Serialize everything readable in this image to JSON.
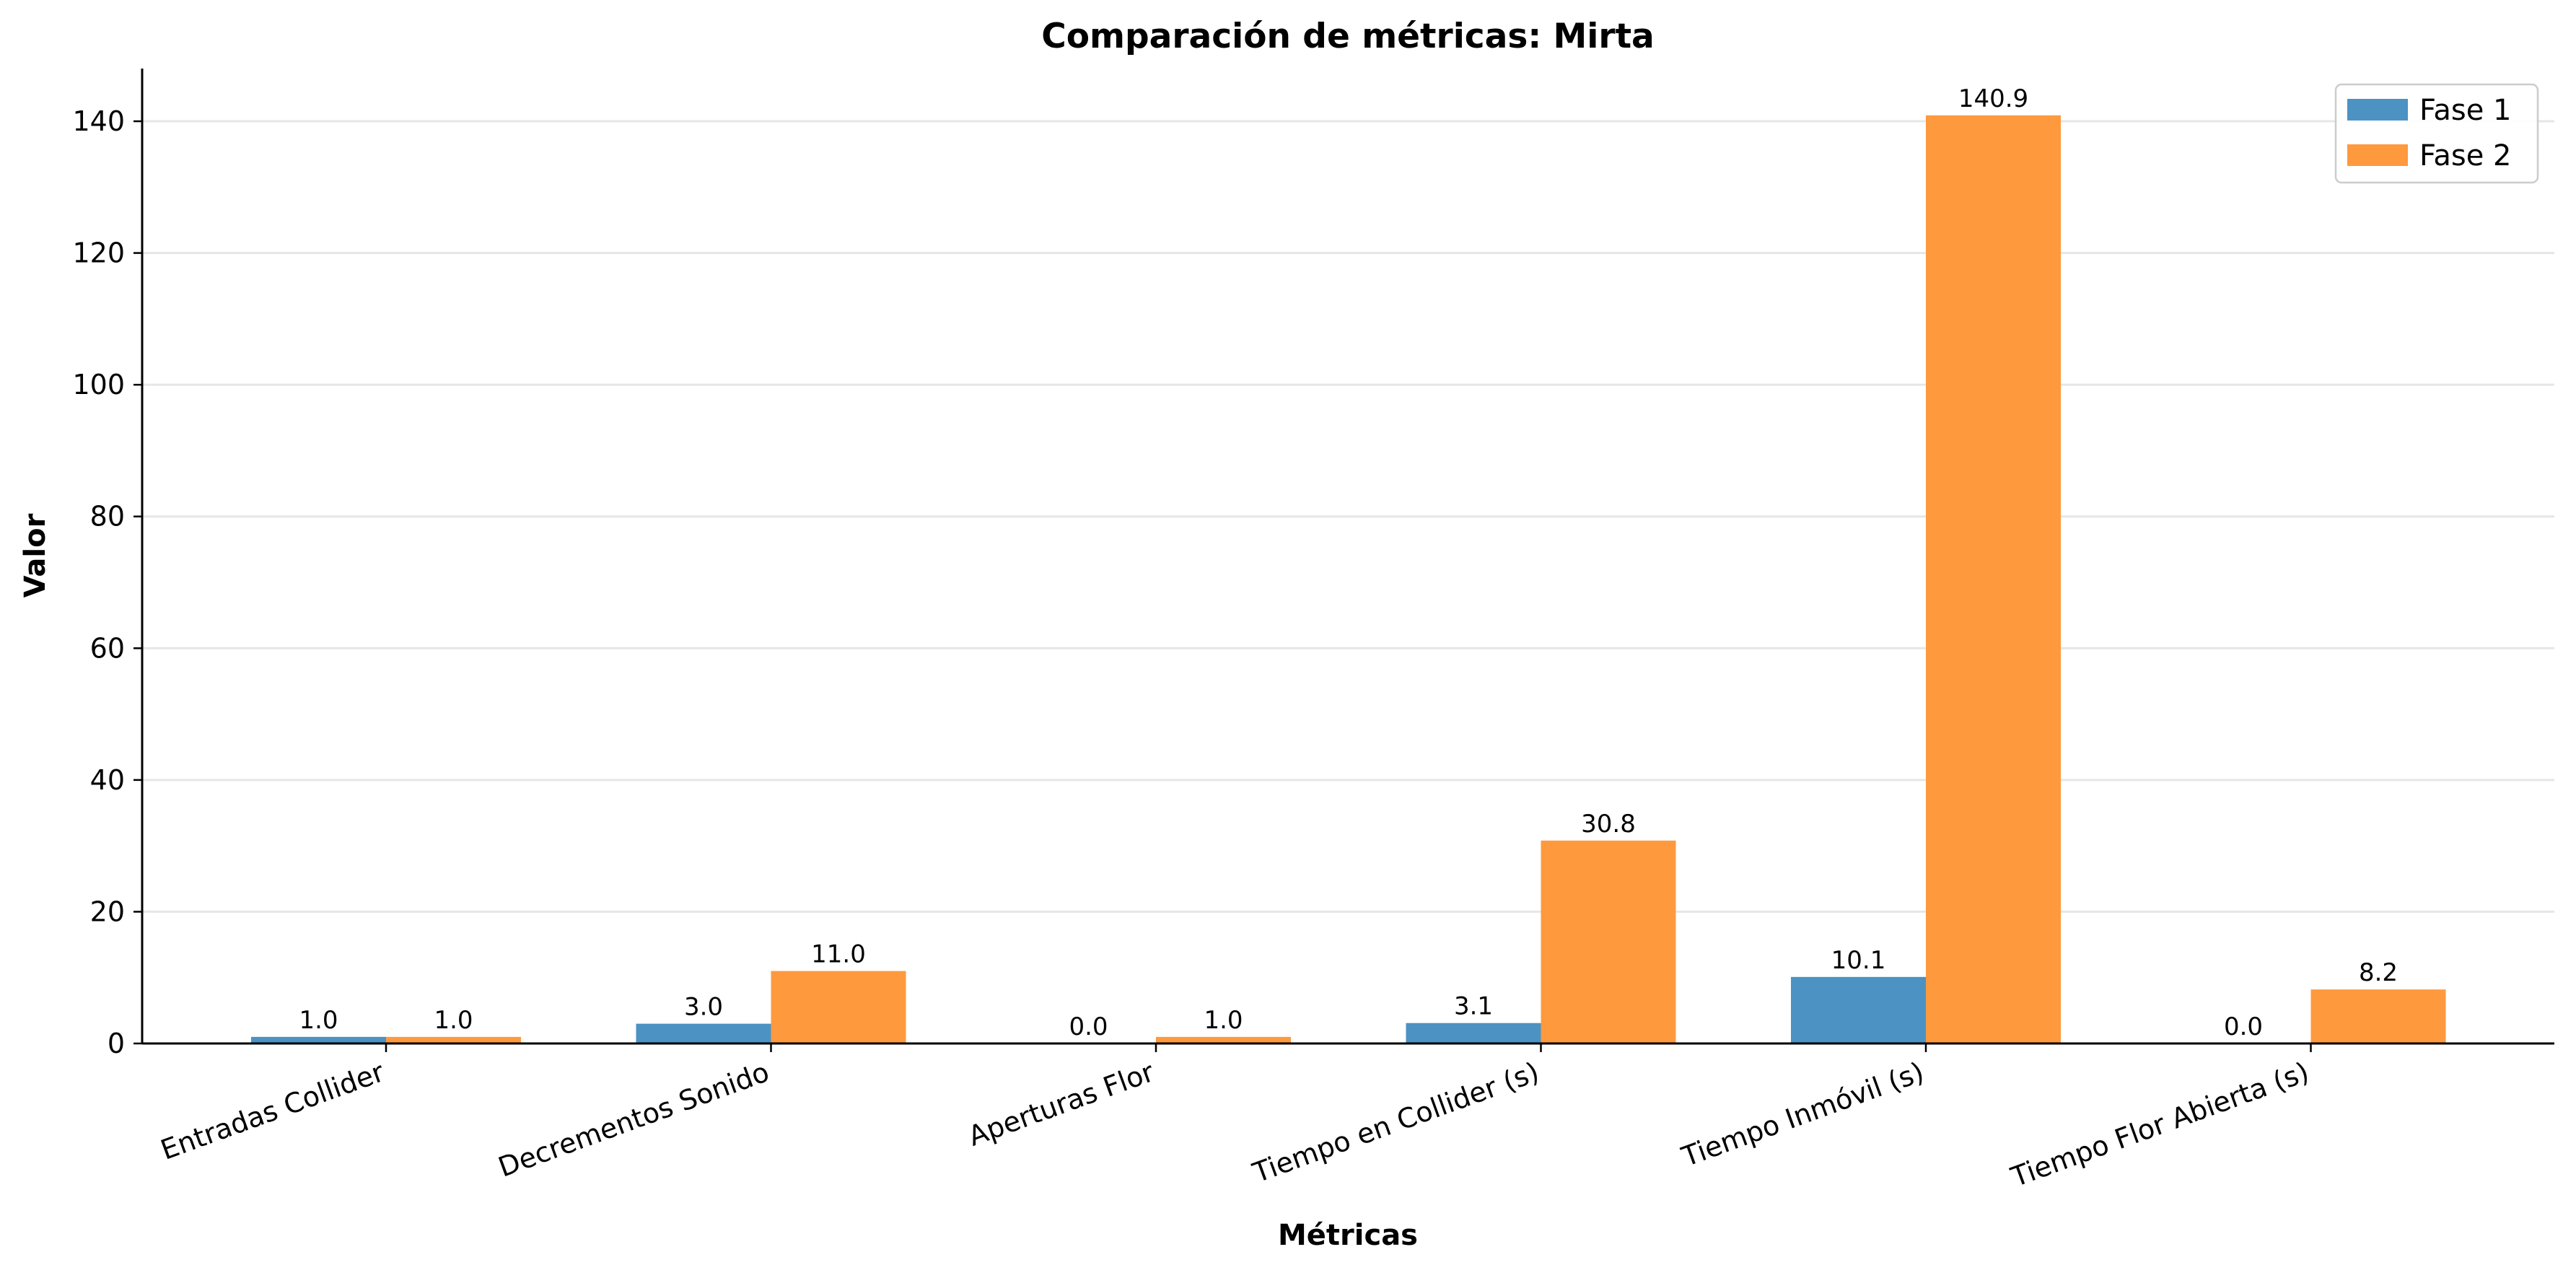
{
  "chart_data": {
    "type": "bar",
    "title": "Comparación de métricas: Mirta",
    "xlabel": "Métricas",
    "ylabel": "Valor",
    "categories": [
      "Entradas Collider",
      "Decrementos Sonido",
      "Aperturas Flor",
      "Tiempo en Collider (s)",
      "Tiempo Inmóvil (s)",
      "Tiempo Flor Abierta (s)"
    ],
    "series": [
      {
        "name": "Fase 1",
        "color": "#4c92c3",
        "values": [
          1.0,
          3.0,
          0.0,
          3.1,
          10.1,
          0.0
        ],
        "labels": [
          "1.0",
          "3.0",
          "0.0",
          "3.1",
          "10.1",
          "0.0"
        ]
      },
      {
        "name": "Fase 2",
        "color": "#ff993e",
        "values": [
          1.0,
          11.0,
          1.0,
          30.8,
          140.9,
          8.2
        ],
        "labels": [
          "1.0",
          "11.0",
          "1.0",
          "30.8",
          "140.9",
          "8.2"
        ]
      }
    ],
    "ylim": [
      0,
      148
    ],
    "yticks": [
      0,
      20,
      40,
      60,
      80,
      100,
      120,
      140
    ],
    "ytick_labels": [
      "0",
      "20",
      "40",
      "60",
      "80",
      "100",
      "120",
      "140"
    ],
    "grid": "horizontal",
    "legend": "top-right"
  }
}
